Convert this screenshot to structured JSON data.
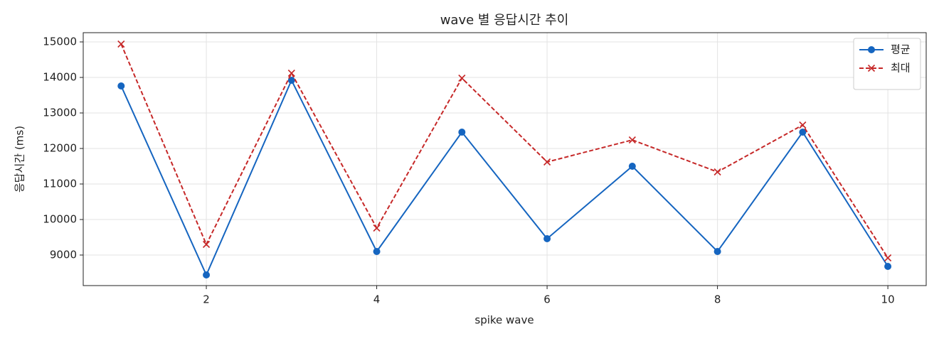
{
  "chart_data": {
    "type": "line",
    "title": "wave 별 응답시간 추이",
    "xlabel": "spike wave",
    "ylabel": "응답시간 (ms)",
    "x": [
      1,
      2,
      3,
      4,
      5,
      6,
      7,
      8,
      9,
      10
    ],
    "series": [
      {
        "name": "평균",
        "color": "#1565c0",
        "marker": "o",
        "linestyle": "solid",
        "values": [
          13760,
          8440,
          13920,
          9100,
          12460,
          9460,
          11500,
          9100,
          12460,
          8680
        ]
      },
      {
        "name": "최대",
        "color": "#c62828",
        "marker": "x",
        "linestyle": "dashed",
        "values": [
          14940,
          9300,
          14120,
          9760,
          13980,
          11620,
          12240,
          11340,
          12660,
          8920
        ]
      }
    ],
    "xlim": [
      0.555,
      10.45
    ],
    "ylim": [
      8140,
      15260
    ],
    "xticks": [
      2,
      4,
      6,
      8,
      10
    ],
    "yticks": [
      9000,
      10000,
      11000,
      12000,
      13000,
      14000,
      15000
    ],
    "grid": true,
    "legend": "upper right"
  }
}
